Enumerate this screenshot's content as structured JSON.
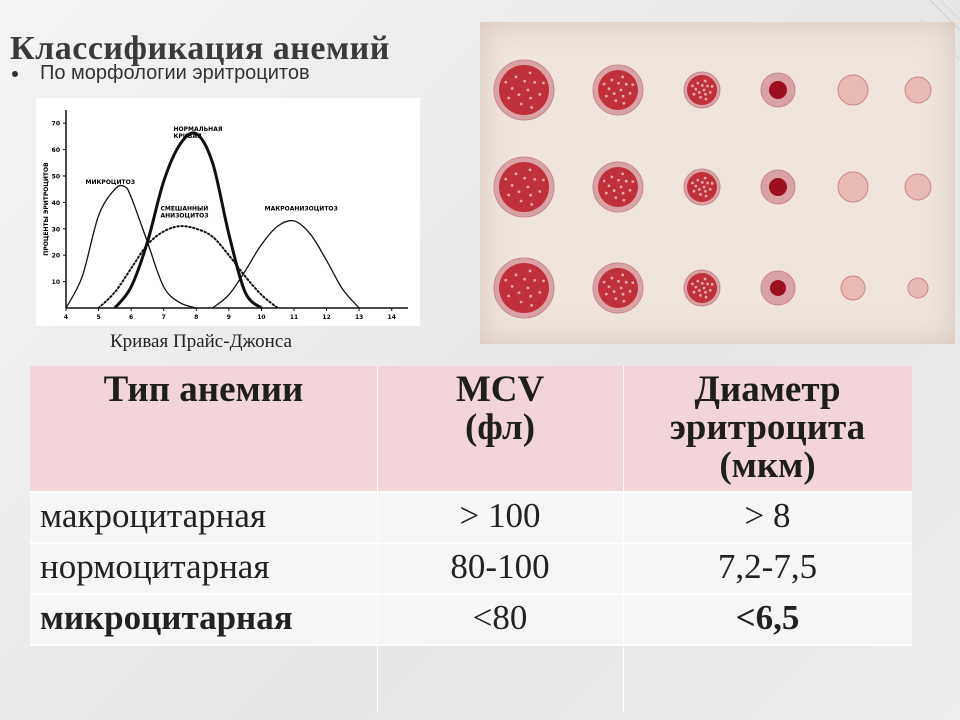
{
  "slide": {
    "title": "Классификация анемий",
    "bullet": "По морфологии эритроцитов",
    "caption": "Кривая Прайс-Джонса"
  },
  "chart_data": {
    "type": "line",
    "ylabel": "ПРОЦЕНТЫ ЭРИТРОЦИТОВ",
    "xlabel": "",
    "x_ticks": [
      "4",
      "5",
      "6",
      "7",
      "8",
      "9",
      "10",
      "11",
      "12",
      "13",
      "14"
    ],
    "y_ticks": [
      "10",
      "20",
      "30",
      "40",
      "50",
      "60",
      "70"
    ],
    "xlim": [
      4,
      14.5
    ],
    "ylim": [
      0,
      75
    ],
    "series": [
      {
        "name": "МИКРОЦИТОЗ",
        "style": "thin",
        "x": [
          4,
          4.5,
          5,
          5.5,
          5.8,
          6,
          6.5,
          7,
          7.5,
          8
        ],
        "y": [
          0,
          12,
          35,
          45,
          46,
          42,
          25,
          8,
          2,
          0
        ]
      },
      {
        "name": "НОРМАЛЬНАЯ КРИВАЯ",
        "style": "bold",
        "x": [
          5.5,
          6,
          6.5,
          7,
          7.5,
          8,
          8.5,
          9,
          9.5,
          10
        ],
        "y": [
          0,
          8,
          25,
          48,
          62,
          66,
          55,
          28,
          6,
          0
        ]
      },
      {
        "name": "СМЕШАННЫЙ АНИЗОЦИТОЗ",
        "style": "dotted",
        "x": [
          5,
          5.5,
          6,
          6.5,
          7,
          7.5,
          8,
          8.5,
          9,
          9.5,
          10,
          10.5
        ],
        "y": [
          0,
          6,
          15,
          24,
          29,
          31,
          30,
          27,
          20,
          12,
          5,
          0
        ]
      },
      {
        "name": "МАКРОАНИЗОЦИТОЗ",
        "style": "thin",
        "x": [
          8.5,
          9,
          9.5,
          10,
          10.5,
          11,
          11.5,
          12,
          12.5,
          13
        ],
        "y": [
          0,
          5,
          14,
          24,
          31,
          33,
          28,
          18,
          7,
          0
        ]
      }
    ]
  },
  "table": {
    "headers": [
      "Тип анемии",
      "MCV (фл)",
      "Диаметр эритроцита (мкм)"
    ],
    "rows": [
      [
        "макроцитарная",
        "> 100",
        "> 8"
      ],
      [
        "нормоцитарная",
        "80-100",
        "7,2-7,5"
      ],
      [
        "микроцитарная",
        "<80",
        "<6,5"
      ]
    ]
  },
  "photo": {
    "cell_color": "#c0303a",
    "halo_color": "#d9a2a6"
  }
}
